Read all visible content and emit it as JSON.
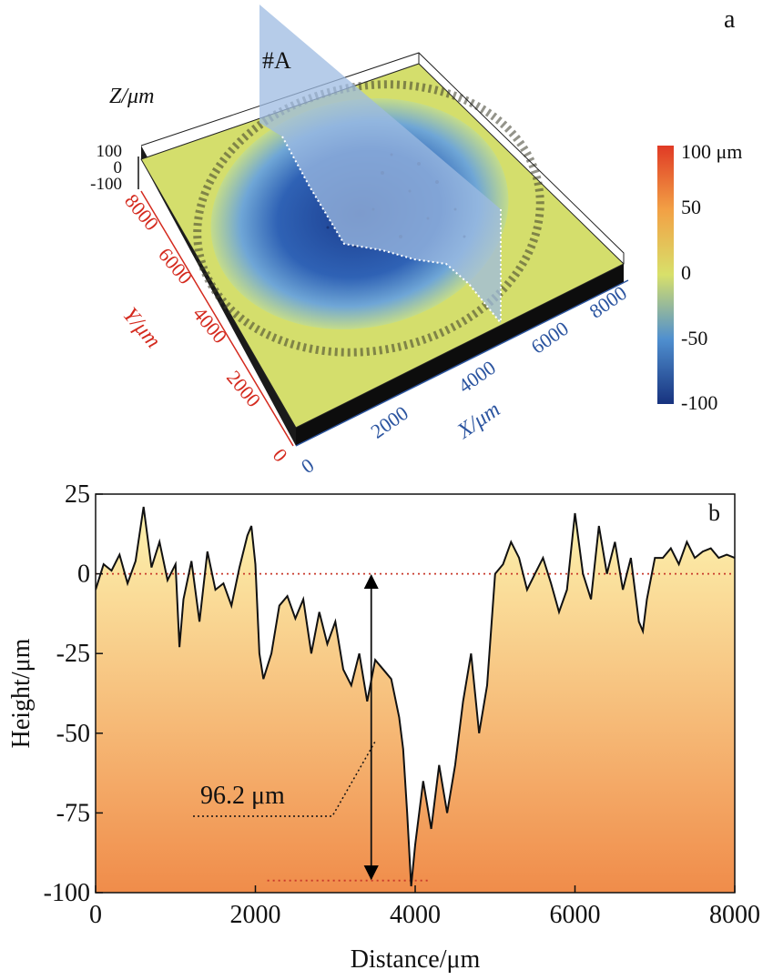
{
  "panel_a": {
    "label": "a",
    "section_label": "#A",
    "z_axis": {
      "label": "Z/μm",
      "ticks": [
        "100",
        "0",
        "-100"
      ]
    },
    "y_axis": {
      "label": "Y/μm",
      "ticks": [
        "0",
        "2000",
        "4000",
        "6000",
        "8000"
      ],
      "color": "#d42a1e"
    },
    "x_axis": {
      "label": "X/μm",
      "ticks": [
        "0",
        "2000",
        "4000",
        "6000",
        "8000"
      ],
      "color": "#2c55a0"
    },
    "colorbar": {
      "ticks": [
        "100 μm",
        "50",
        "0",
        "-50",
        "-100"
      ],
      "colors": [
        "#e03a25",
        "#f2a145",
        "#d8e06a",
        "#4f8fcf",
        "#17327e"
      ]
    },
    "surface_colors": {
      "flat": "#d4de6c",
      "pit_mid": "#4f8fcf",
      "pit_deep": "#1b3d8e"
    }
  },
  "panel_b": {
    "label": "b",
    "annotation": "96.2 μm",
    "fill_colors": {
      "top": "#fdf4b0",
      "bottom": "#f08c4a"
    },
    "reference_line_color": "#c8392b"
  },
  "chart_data": {
    "type": "line",
    "xlabel": "Distance/μm",
    "ylabel": "Height/μm",
    "xlim": [
      0,
      8000
    ],
    "ylim": [
      -100,
      25
    ],
    "xticks": [
      0,
      2000,
      4000,
      6000,
      8000
    ],
    "yticks": [
      25,
      0,
      -25,
      -50,
      -75,
      -100
    ],
    "reference_levels": [
      0,
      -96.2
    ],
    "depth_marker": {
      "x": 3450,
      "from": 0,
      "to": -96.2,
      "label": "96.2 μm"
    },
    "series": [
      {
        "x": [
          0,
          100,
          200,
          300,
          400,
          500,
          600,
          700,
          800,
          900,
          1000,
          1050,
          1100,
          1200,
          1300,
          1400,
          1500,
          1600,
          1700,
          1800,
          1900,
          1950,
          2000,
          2050,
          2100,
          2200,
          2300,
          2400,
          2500,
          2600,
          2700,
          2800,
          2900,
          3000,
          3100,
          3200,
          3300,
          3400,
          3500,
          3600,
          3700,
          3800,
          3850,
          3900,
          3950,
          4000,
          4100,
          4200,
          4300,
          4400,
          4500,
          4600,
          4700,
          4800,
          4900,
          5000,
          5100,
          5200,
          5300,
          5400,
          5500,
          5600,
          5700,
          5800,
          5900,
          6000,
          6100,
          6200,
          6300,
          6400,
          6500,
          6600,
          6700,
          6800,
          6850,
          6900,
          7000,
          7100,
          7200,
          7300,
          7400,
          7500,
          7600,
          7700,
          7800,
          7900,
          8000
        ],
        "y": [
          -5,
          3,
          1,
          6,
          -3,
          4,
          21,
          2,
          10,
          -2,
          3,
          -23,
          -8,
          4,
          -15,
          7,
          -5,
          -3,
          -10,
          2,
          12,
          15,
          3,
          -25,
          -33,
          -25,
          -10,
          -7,
          -14,
          -8,
          -25,
          -12,
          -22,
          -15,
          -30,
          -35,
          -25,
          -40,
          -27,
          -30,
          -33,
          -45,
          -55,
          -75,
          -98,
          -85,
          -65,
          -80,
          -60,
          -75,
          -60,
          -40,
          -25,
          -50,
          -35,
          0,
          3,
          10,
          5,
          -5,
          0,
          5,
          -3,
          -12,
          -5,
          19,
          0,
          -8,
          15,
          0,
          10,
          -5,
          5,
          -15,
          -18,
          -8,
          5,
          5,
          8,
          3,
          10,
          5,
          7,
          8,
          5,
          6,
          5
        ]
      }
    ]
  }
}
